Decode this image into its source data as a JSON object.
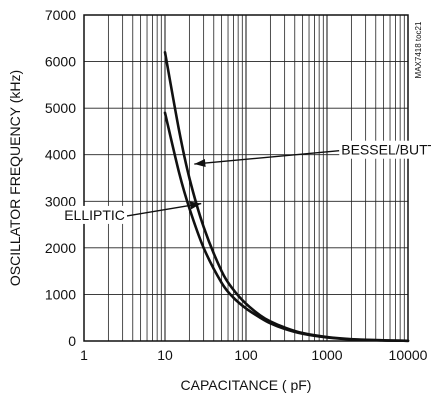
{
  "chart_data": {
    "type": "line",
    "xscale": "log",
    "xlim": [
      1,
      10000
    ],
    "ylim": [
      0,
      7000
    ],
    "xticks": [
      1,
      10,
      100,
      1000,
      10000
    ],
    "xtick_labels": [
      "1",
      "10",
      "100",
      "1000",
      "10000"
    ],
    "yticks": [
      0,
      1000,
      2000,
      3000,
      4000,
      5000,
      6000,
      7000
    ],
    "ytick_labels": [
      "0",
      "1000",
      "2000",
      "3000",
      "4000",
      "5000",
      "6000",
      "7000"
    ],
    "xlabel": "CAPACITANCE ( pF)",
    "ylabel": "OSCILLATOR FREQUENCY (kHz)",
    "grid": true,
    "part_number": "MAX7418 toc21",
    "series": [
      {
        "name": "BESSEL/BUTTERWORTH",
        "x": [
          10,
          15,
          20,
          30,
          50,
          70,
          100,
          150,
          200,
          300,
          500,
          1000,
          2000,
          5000,
          10000
        ],
        "y": [
          6200,
          4500,
          3500,
          2450,
          1500,
          1100,
          800,
          550,
          420,
          290,
          170,
          85,
          40,
          15,
          5
        ]
      },
      {
        "name": "ELLIPTIC",
        "x": [
          10,
          15,
          20,
          30,
          50,
          70,
          100,
          150,
          200,
          300,
          500,
          1000,
          2000,
          5000,
          10000
        ],
        "y": [
          4900,
          3600,
          2850,
          2000,
          1250,
          930,
          700,
          500,
          380,
          260,
          155,
          75,
          35,
          12,
          4
        ]
      }
    ],
    "annotations": [
      {
        "text": "BESSEL/BUTTERWORTH",
        "x": 1500,
        "y": 4000,
        "arrow_to": [
          23,
          3800
        ]
      },
      {
        "text": "ELLIPTIC",
        "x": 3.2,
        "y": 2600,
        "arrow_to": [
          28,
          2950
        ]
      }
    ]
  }
}
